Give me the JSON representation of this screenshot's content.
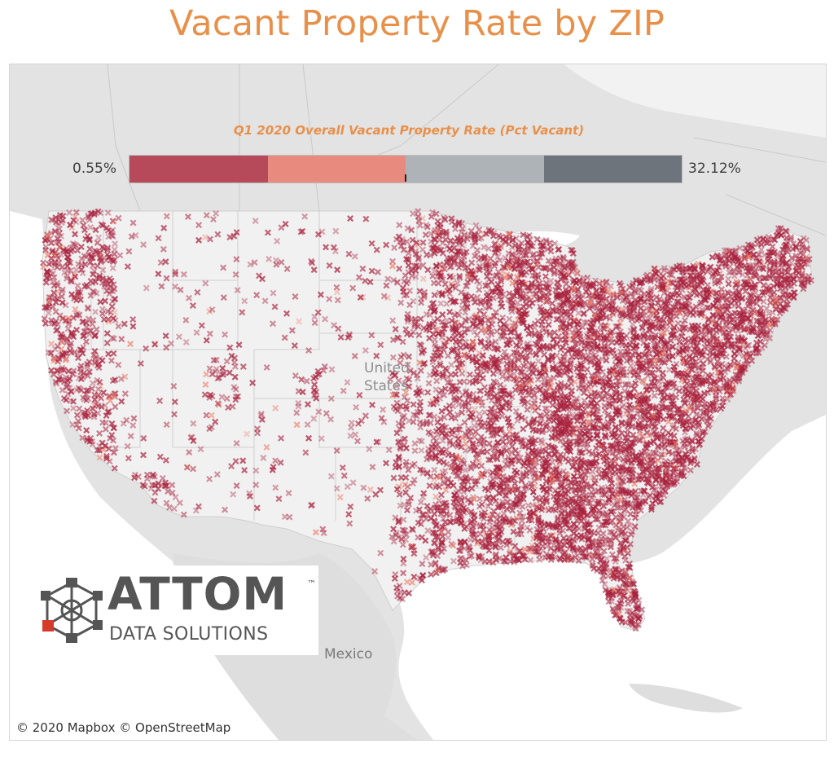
{
  "title": "Vacant Property Rate by ZIP",
  "legend": {
    "title": "Q1 2020 Overall Vacant Property Rate (Pct Vacant)",
    "min_label": "0.55%",
    "max_label": "32.12%",
    "min": 0.55,
    "max": 32.12,
    "colors": [
      "#b64a5b",
      "#e98a7e",
      "#aeb3b7",
      "#6e747c"
    ]
  },
  "map": {
    "country_labels": [
      "United States",
      "Mexico"
    ],
    "us_label_lines": [
      "United",
      "States"
    ],
    "mexico_label": "Mexico",
    "attribution": "© 2020 Mapbox  © OpenStreetMap",
    "marker_symbol": "x",
    "marker_color": "#a8203c",
    "secondary_marker_color": "#ee7b63",
    "land_color": "#e8e8e8",
    "us_fill_color": "#f2f2f2",
    "water_color": "#ffffff"
  },
  "logo": {
    "wordmark": "ATTOM",
    "tagline": "DATA SOLUTIONS",
    "trademark": "™",
    "accent_color": "#d63a2b",
    "text_color": "#555555"
  }
}
